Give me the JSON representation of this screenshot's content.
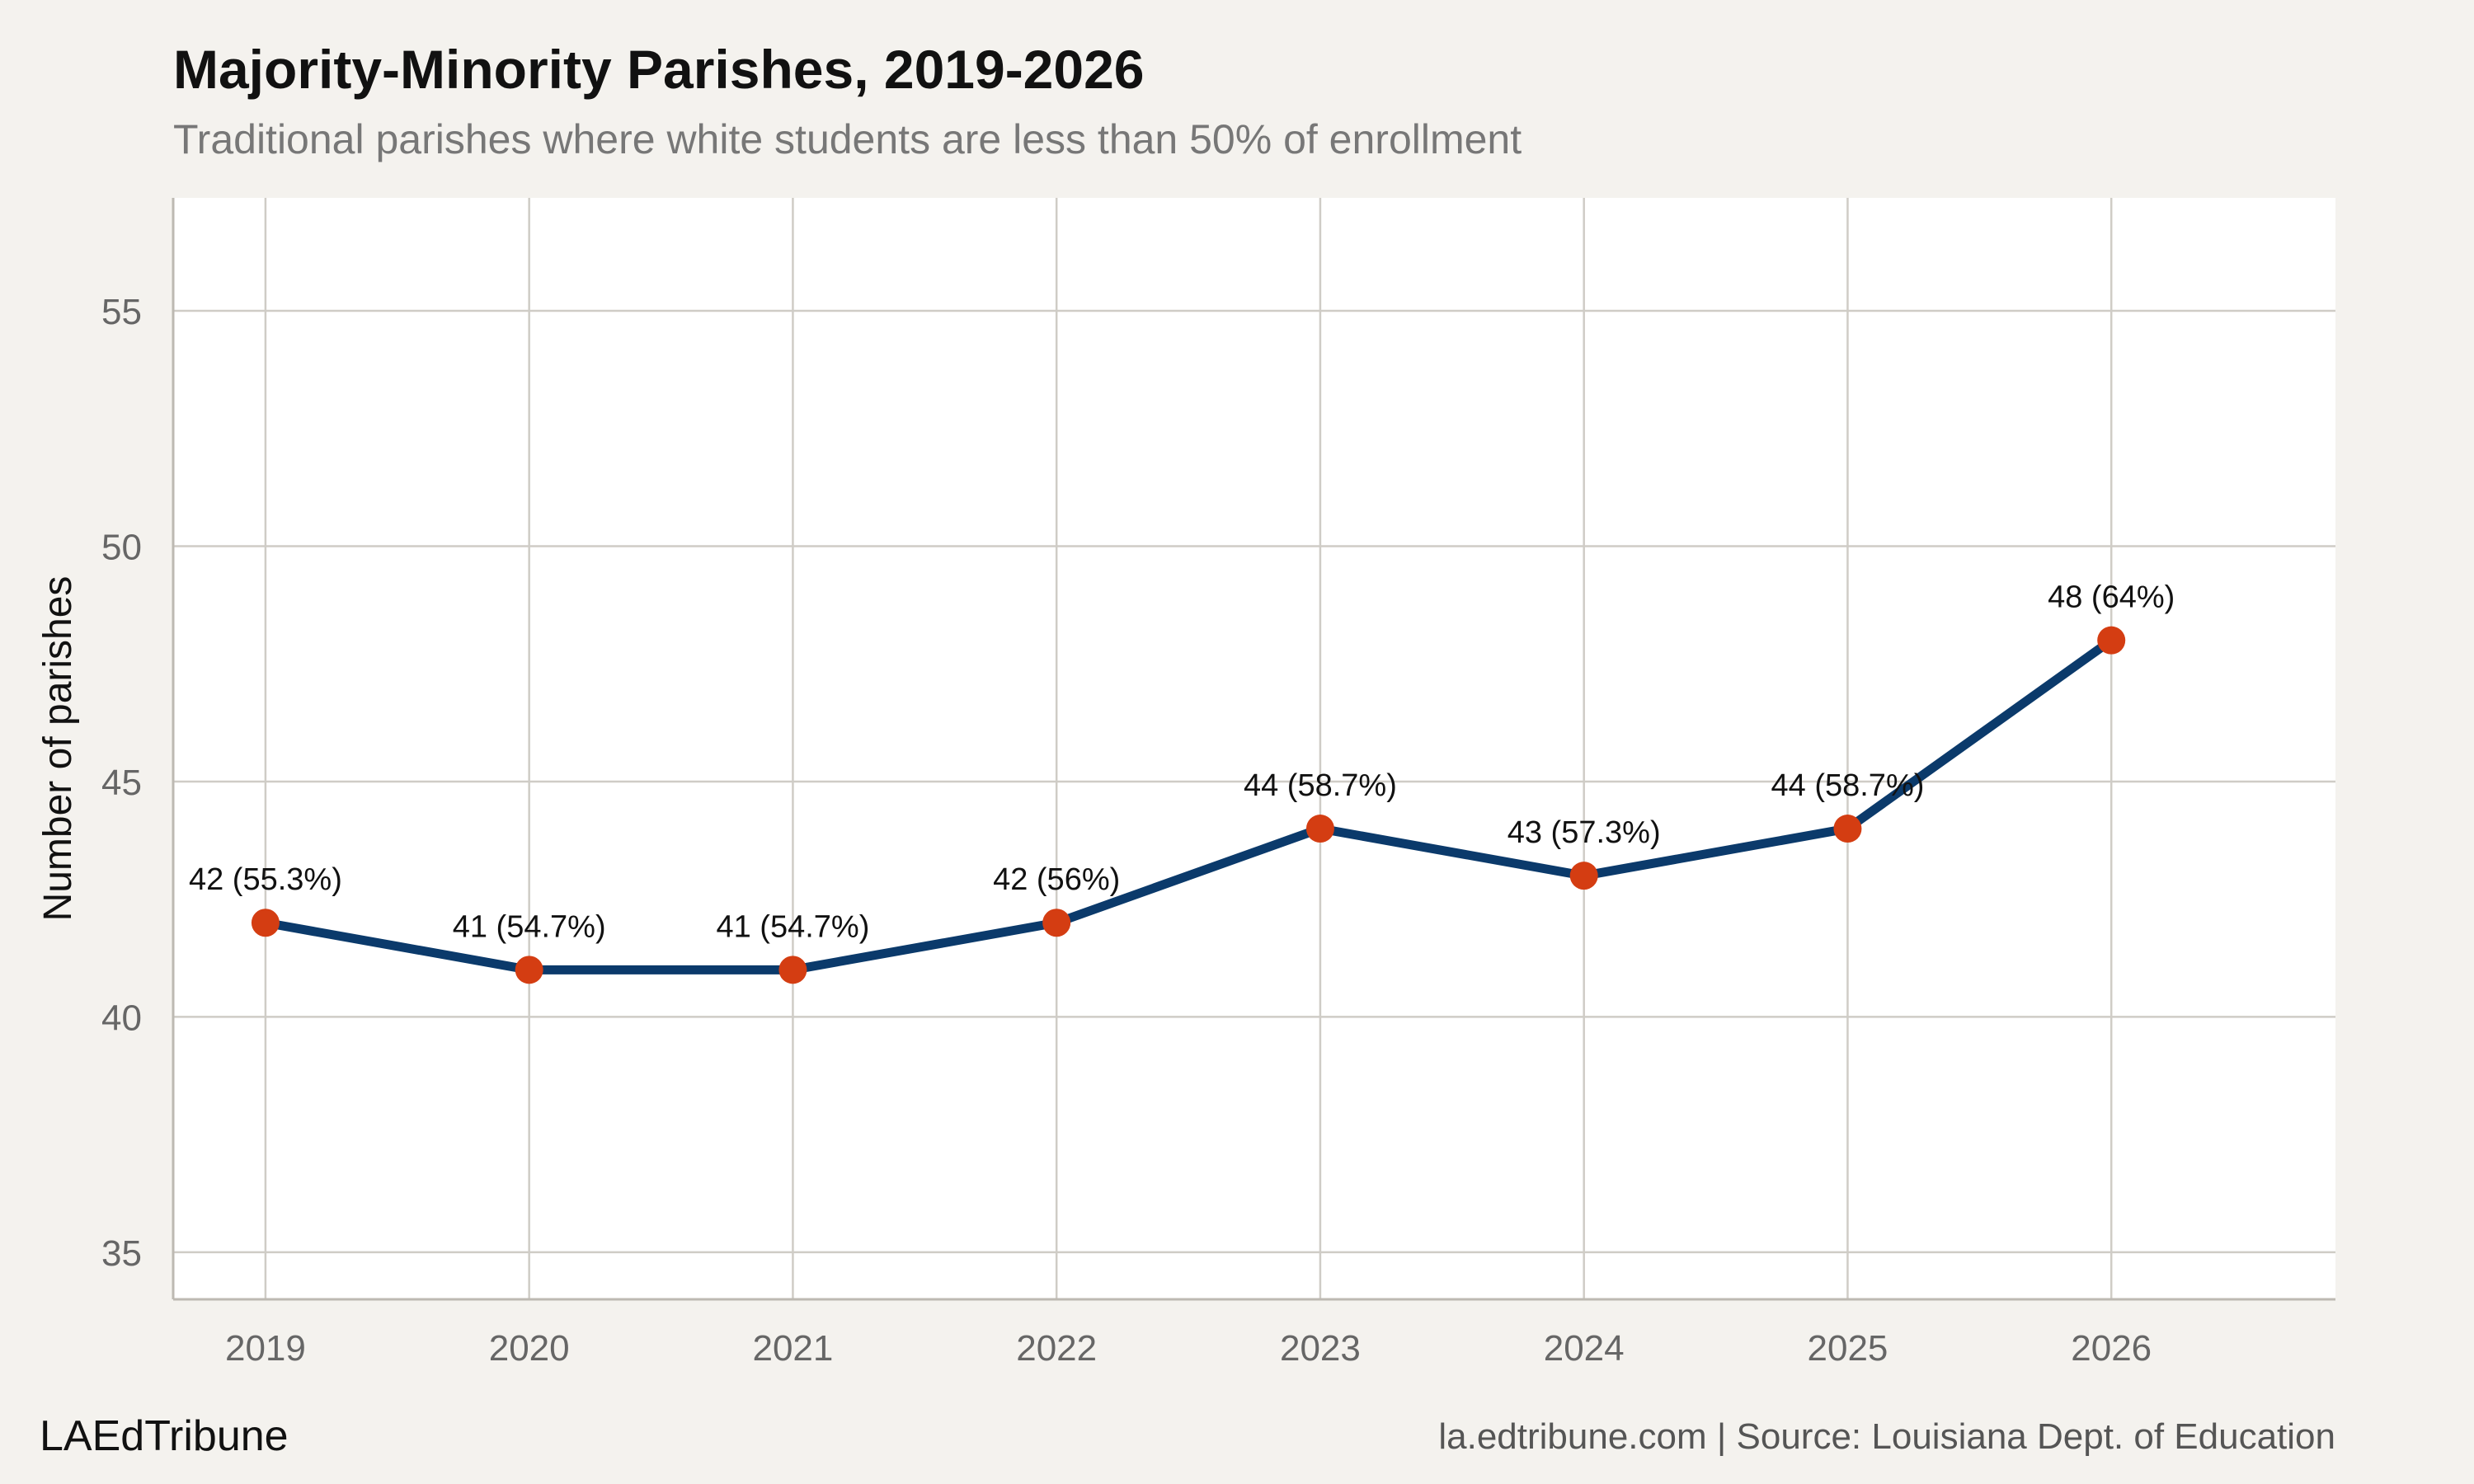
{
  "header": {
    "title": "Majority-Minority Parishes, 2019-2026",
    "subtitle": "Traditional parishes where white students are less than 50% of enrollment"
  },
  "footer": {
    "brand": "LAEdTribune",
    "source": "la.edtribune.com | Source: Louisiana Dept. of Education"
  },
  "colors": {
    "background": "#f4f2ee",
    "panel": "#ffffff",
    "grid": "#cfccc6",
    "line": "#0b3a6b",
    "point": "#d43d12"
  },
  "chart_data": {
    "type": "line",
    "title": "Majority-Minority Parishes, 2019-2026",
    "subtitle": "Traditional parishes where white students are less than 50% of enrollment",
    "xlabel": "",
    "ylabel": "Number of parishes",
    "x": [
      "2019",
      "2020",
      "2021",
      "2022",
      "2023",
      "2024",
      "2025",
      "2026"
    ],
    "xlim": [
      2018.65,
      2026.85
    ],
    "ylim": [
      34,
      57.4
    ],
    "yticks": [
      35,
      40,
      45,
      50,
      55
    ],
    "grid": true,
    "series": [
      {
        "values": [
          42,
          41,
          41,
          42,
          44,
          43,
          44,
          48
        ],
        "labels": [
          "42 (55.3%)",
          "41 (54.7%)",
          "41 (54.7%)",
          "42 (56%)",
          "44 (58.7%)",
          "43 (57.3%)",
          "44 (58.7%)",
          "48 (64%)"
        ]
      }
    ]
  }
}
